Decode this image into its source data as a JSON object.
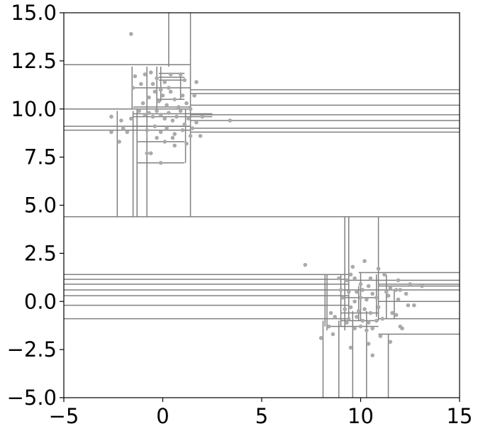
{
  "chart_data": {
    "type": "scatter",
    "title": "",
    "xlabel": "",
    "ylabel": "",
    "xlim": [
      -5,
      15
    ],
    "ylim": [
      -5,
      15
    ],
    "xticks": [
      -5,
      0,
      5,
      10,
      15
    ],
    "yticks": [
      -5.0,
      -2.5,
      0.0,
      2.5,
      5.0,
      7.5,
      10.0,
      12.5,
      15.0
    ],
    "xtick_labels": [
      "−5",
      "0",
      "5",
      "10",
      "15"
    ],
    "ytick_labels": [
      "−5.0",
      "−2.5",
      "0.0",
      "2.5",
      "5.0",
      "7.5",
      "10.0",
      "12.5",
      "15.0"
    ],
    "grid": false,
    "colors": {
      "points": "#aaaaaa",
      "lines": "#808080",
      "axes": "#000000"
    },
    "series": [
      {
        "points": [
          [
            -1.6,
            13.9
          ],
          [
            -1.5,
            11.1
          ],
          [
            -1.4,
            11.7
          ],
          [
            -1.1,
            11.3
          ],
          [
            -0.9,
            11.8
          ],
          [
            -0.6,
            11.9
          ],
          [
            -0.5,
            11.3
          ],
          [
            -0.3,
            11.6
          ],
          [
            0.1,
            11.4
          ],
          [
            0.4,
            11.8
          ],
          [
            0.9,
            11.8
          ],
          [
            1.1,
            11.5
          ],
          [
            1.7,
            11.4
          ],
          [
            -1.0,
            10.3
          ],
          [
            -0.7,
            10.6
          ],
          [
            -0.4,
            10.9
          ],
          [
            -0.2,
            10.4
          ],
          [
            0.0,
            10.7
          ],
          [
            0.2,
            10.2
          ],
          [
            0.4,
            10.9
          ],
          [
            0.6,
            10.5
          ],
          [
            0.8,
            10.1
          ],
          [
            1.0,
            10.7
          ],
          [
            1.2,
            10.3
          ],
          [
            1.4,
            10.0
          ],
          [
            1.6,
            10.7
          ],
          [
            0.3,
            11.1
          ],
          [
            -0.1,
            11.0
          ],
          [
            -2.6,
            9.6
          ],
          [
            -2.1,
            9.4
          ],
          [
            -1.6,
            9.5
          ],
          [
            -1.2,
            9.9
          ],
          [
            -0.9,
            9.7
          ],
          [
            -0.7,
            9.8
          ],
          [
            -0.5,
            9.6
          ],
          [
            -0.3,
            9.9
          ],
          [
            -0.1,
            9.7
          ],
          [
            0.1,
            9.5
          ],
          [
            0.3,
            9.8
          ],
          [
            0.5,
            9.4
          ],
          [
            0.7,
            9.6
          ],
          [
            0.9,
            9.9
          ],
          [
            1.1,
            9.2
          ],
          [
            1.3,
            9.5
          ],
          [
            1.5,
            9.0
          ],
          [
            1.7,
            9.3
          ],
          [
            2.0,
            9.6
          ],
          [
            3.4,
            9.4
          ],
          [
            -2.6,
            8.8
          ],
          [
            -2.0,
            9.0
          ],
          [
            -1.8,
            8.8
          ],
          [
            -0.8,
            8.9
          ],
          [
            -0.4,
            9.1
          ],
          [
            -0.1,
            8.8
          ],
          [
            0.2,
            9.0
          ],
          [
            0.6,
            8.7
          ],
          [
            1.0,
            8.9
          ],
          [
            1.4,
            8.6
          ],
          [
            1.9,
            8.6
          ],
          [
            -2.2,
            8.3
          ],
          [
            -0.3,
            8.5
          ],
          [
            0.1,
            8.3
          ],
          [
            0.5,
            8.5
          ],
          [
            0.6,
            8.1
          ],
          [
            1.2,
            8.2
          ],
          [
            -0.8,
            7.7
          ],
          [
            -0.6,
            7.7
          ],
          [
            -0.1,
            7.2
          ],
          [
            7.2,
            1.9
          ],
          [
            9.6,
            1.8
          ],
          [
            10.2,
            2.1
          ],
          [
            10.9,
            1.7
          ],
          [
            9.5,
            1.4
          ],
          [
            9.3,
            1.1
          ],
          [
            9.7,
            1.2
          ],
          [
            8.9,
            1.2
          ],
          [
            10.5,
            1.2
          ],
          [
            11.2,
            1.4
          ],
          [
            11.9,
            1.1
          ],
          [
            10.0,
            0.9
          ],
          [
            10.4,
            0.8
          ],
          [
            11.5,
            0.7
          ],
          [
            12.0,
            0.6
          ],
          [
            12.5,
            0.9
          ],
          [
            13.1,
            0.8
          ],
          [
            9.0,
            0.6
          ],
          [
            9.4,
            0.5
          ],
          [
            9.8,
            0.5
          ],
          [
            10.1,
            0.6
          ],
          [
            10.6,
            0.4
          ],
          [
            11.3,
            0.5
          ],
          [
            11.8,
            0.6
          ],
          [
            12.3,
            0.4
          ],
          [
            9.1,
            0.2
          ],
          [
            9.7,
            0.0
          ],
          [
            10.0,
            0.2
          ],
          [
            10.3,
            0.1
          ],
          [
            10.8,
            0.2
          ],
          [
            11.4,
            0.3
          ],
          [
            11.9,
            0.1
          ],
          [
            12.4,
            -0.2
          ],
          [
            12.7,
            -0.2
          ],
          [
            9.2,
            -0.4
          ],
          [
            9.5,
            -0.3
          ],
          [
            9.9,
            -0.5
          ],
          [
            10.2,
            -0.4
          ],
          [
            10.5,
            -0.6
          ],
          [
            10.9,
            -0.3
          ],
          [
            11.6,
            -0.6
          ],
          [
            11.8,
            -0.7
          ],
          [
            8.5,
            -0.6
          ],
          [
            8.7,
            -0.8
          ],
          [
            9.4,
            -0.9
          ],
          [
            9.8,
            -0.8
          ],
          [
            10.1,
            -1.0
          ],
          [
            10.4,
            -1.1
          ],
          [
            10.8,
            -1.0
          ],
          [
            11.1,
            -0.9
          ],
          [
            8.4,
            -1.3
          ],
          [
            9.3,
            -1.1
          ],
          [
            9.7,
            -1.4
          ],
          [
            10.0,
            -1.3
          ],
          [
            10.3,
            -1.5
          ],
          [
            10.6,
            -1.4
          ],
          [
            11.0,
            -1.8
          ],
          [
            12.0,
            -1.3
          ],
          [
            12.1,
            -1.4
          ],
          [
            8.0,
            -1.9
          ],
          [
            8.6,
            -1.7
          ],
          [
            9.5,
            -2.4
          ],
          [
            10.4,
            -2.2
          ],
          [
            10.6,
            -2.8
          ],
          [
            11.5,
            -2.1
          ]
        ]
      }
    ],
    "partition_lines": {
      "vertical": [
        [
          0.3,
          12.2,
          15.0
        ],
        [
          1.4,
          12.2,
          15.0
        ],
        [
          -2.3,
          4.4,
          9.9
        ],
        [
          -1.5,
          4.4,
          9.9
        ],
        [
          -1.3,
          4.4,
          10.0
        ],
        [
          -0.8,
          4.4,
          12.2
        ],
        [
          1.15,
          7.2,
          10.0
        ],
        [
          1.4,
          4.4,
          12.2
        ],
        [
          -1.55,
          10.0,
          12.2
        ],
        [
          -0.3,
          10.0,
          12.2
        ],
        [
          -0.1,
          10.4,
          12.2
        ],
        [
          0.9,
          10.5,
          11.9
        ],
        [
          8.1,
          -5.0,
          -1.0
        ],
        [
          8.9,
          -5.0,
          -1.0
        ],
        [
          9.6,
          -5.0,
          -0.5
        ],
        [
          10.3,
          -5.0,
          -0.5
        ],
        [
          11.4,
          -5.0,
          -1.7
        ],
        [
          9.4,
          -1.0,
          4.4
        ],
        [
          10.0,
          -1.0,
          1.5
        ],
        [
          10.9,
          -1.0,
          4.4
        ],
        [
          8.2,
          -1.3,
          1.4
        ],
        [
          8.3,
          -1.5,
          1.4
        ],
        [
          9.0,
          -1.3,
          1.4
        ],
        [
          9.2,
          -1.5,
          4.4
        ],
        [
          9.9,
          -1.0,
          0.8
        ],
        [
          10.8,
          -0.8,
          1.4
        ],
        [
          11.3,
          -0.9,
          1.4
        ],
        [
          11.7,
          -0.9,
          0.6
        ]
      ],
      "horizontal": [
        [
          12.3,
          -5.0,
          1.4
        ],
        [
          10.0,
          -5.0,
          1.4
        ],
        [
          9.1,
          -5.0,
          1.4
        ],
        [
          8.9,
          -5.0,
          1.4
        ],
        [
          11.0,
          1.4,
          15.0
        ],
        [
          10.8,
          1.4,
          15.0
        ],
        [
          10.2,
          1.4,
          15.0
        ],
        [
          9.7,
          1.4,
          15.0
        ],
        [
          9.4,
          1.4,
          15.0
        ],
        [
          9.0,
          1.4,
          15.0
        ],
        [
          8.8,
          1.4,
          15.0
        ],
        [
          11.85,
          -0.2,
          1.1
        ],
        [
          11.65,
          -0.2,
          1.1
        ],
        [
          11.5,
          -0.2,
          1.1
        ],
        [
          11.1,
          -1.4,
          1.4
        ],
        [
          10.5,
          -0.3,
          1.1
        ],
        [
          10.1,
          -1.5,
          1.4
        ],
        [
          9.75,
          -1.5,
          2.5
        ],
        [
          9.6,
          -1.5,
          2.5
        ],
        [
          9.1,
          -1.5,
          1.4
        ],
        [
          8.3,
          -1.3,
          1.1
        ],
        [
          7.2,
          -1.3,
          1.1
        ],
        [
          4.4,
          -5.0,
          15.0
        ],
        [
          1.4,
          -5.0,
          9.4
        ],
        [
          1.15,
          -5.0,
          9.4
        ],
        [
          0.9,
          -5.0,
          9.4
        ],
        [
          0.6,
          -5.0,
          9.4
        ],
        [
          0.3,
          -5.0,
          9.4
        ],
        [
          -0.2,
          -5.0,
          9.4
        ],
        [
          -0.9,
          -5.0,
          9.4
        ],
        [
          1.5,
          10.9,
          15.0
        ],
        [
          1.1,
          10.9,
          15.0
        ],
        [
          0.9,
          10.9,
          15.0
        ],
        [
          0.8,
          10.9,
          15.0
        ],
        [
          0.6,
          10.9,
          15.0
        ],
        [
          0.0,
          10.9,
          15.0
        ],
        [
          -0.9,
          10.9,
          15.0
        ],
        [
          -1.7,
          10.9,
          15.0
        ],
        [
          1.5,
          9.9,
          10.9
        ],
        [
          1.1,
          9.3,
          10.9
        ],
        [
          0.6,
          9.2,
          10.9
        ],
        [
          0.2,
          9.0,
          10.9
        ],
        [
          -0.6,
          9.0,
          10.9
        ],
        [
          -1.0,
          9.0,
          10.9
        ],
        [
          -1.3,
          8.3,
          10.9
        ]
      ]
    }
  }
}
